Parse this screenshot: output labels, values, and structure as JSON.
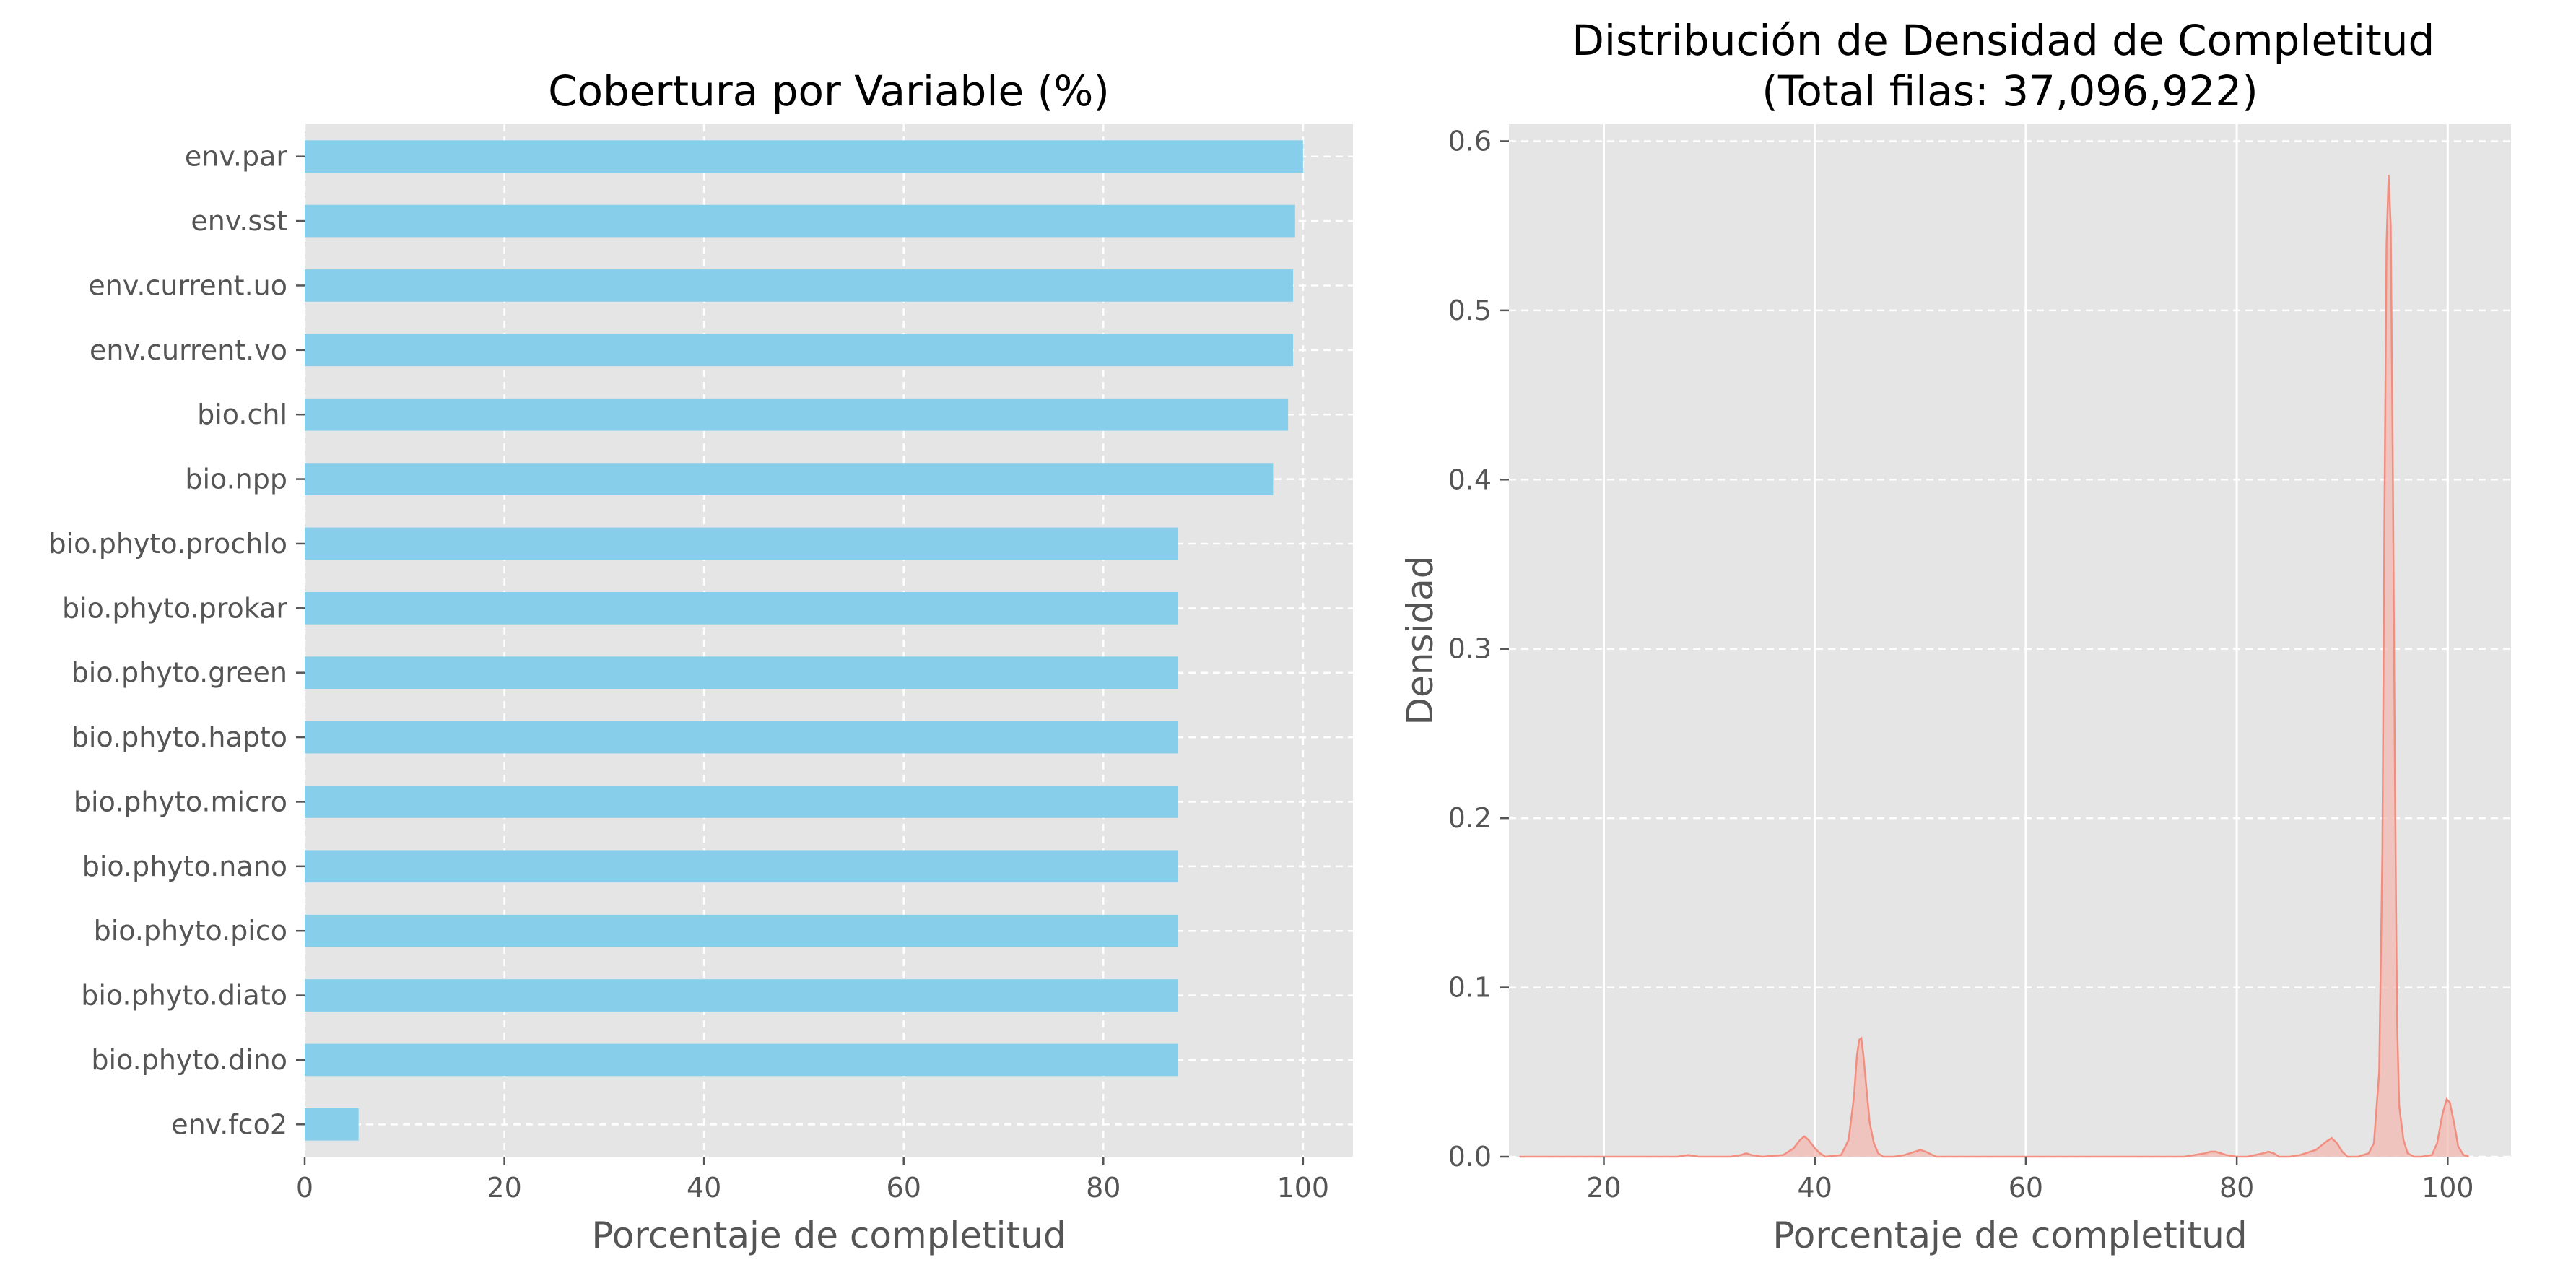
{
  "colors": {
    "background": "#ffffff",
    "plot_background": "#e5e5e5",
    "bar": "#87ceeb",
    "kde_line": "#f28e80",
    "kde_fill": "#f2b8b0",
    "grid": "#ffffff",
    "text": "#555555"
  },
  "chart_data": [
    {
      "type": "bar",
      "orientation": "horizontal",
      "title": "Cobertura por Variable (%)",
      "xlabel": "Porcentaje de completitud",
      "ylabel": "",
      "xlim": [
        0,
        105
      ],
      "xticks": [
        "0",
        "20",
        "40",
        "60",
        "80",
        "100"
      ],
      "grid": true,
      "categories": [
        "env.par",
        "env.sst",
        "env.current.uo",
        "env.current.vo",
        "bio.chl",
        "bio.npp",
        "bio.phyto.prochlo",
        "bio.phyto.prokar",
        "bio.phyto.green",
        "bio.phyto.hapto",
        "bio.phyto.micro",
        "bio.phyto.nano",
        "bio.phyto.pico",
        "bio.phyto.diato",
        "bio.phyto.dino",
        "env.fco2"
      ],
      "values": [
        100.0,
        99.2,
        99.0,
        99.0,
        98.5,
        97.0,
        87.5,
        87.5,
        87.5,
        87.5,
        87.5,
        87.5,
        87.5,
        87.5,
        87.5,
        5.4
      ]
    },
    {
      "type": "area",
      "kind": "kde",
      "title": "Distribución de Densidad de Completitud\n(Total filas: 37,096,922)",
      "xlabel": "Porcentaje de completitud",
      "ylabel": "Densidad",
      "xlim": [
        11,
        106
      ],
      "ylim": [
        0,
        0.61
      ],
      "xticks": [
        "20",
        "40",
        "60",
        "80",
        "100"
      ],
      "yticks": [
        "0.0",
        "0.1",
        "0.2",
        "0.3",
        "0.4",
        "0.5",
        "0.6"
      ],
      "grid": true,
      "x": [
        12.0,
        27.0,
        28.0,
        29.0,
        32.0,
        33.0,
        33.5,
        34.0,
        35.0,
        37.0,
        38.0,
        38.6,
        39.0,
        39.4,
        40.0,
        40.5,
        41.0,
        42.5,
        43.2,
        43.7,
        44.0,
        44.2,
        44.4,
        44.6,
        44.9,
        45.2,
        45.6,
        46.0,
        46.5,
        47.5,
        48.5,
        49.5,
        50.0,
        50.5,
        51.5,
        53.0,
        56.0,
        60.0,
        70.0,
        72.0,
        75.0,
        76.0,
        77.0,
        77.5,
        78.0,
        78.5,
        79.0,
        80.0,
        81.0,
        82.5,
        83.0,
        83.5,
        84.0,
        85.0,
        86.0,
        87.5,
        88.5,
        89.0,
        89.5,
        90.0,
        90.5,
        91.5,
        92.5,
        93.0,
        93.5,
        93.8,
        94.0,
        94.2,
        94.4,
        94.6,
        94.8,
        95.0,
        95.2,
        95.4,
        95.8,
        96.2,
        96.8,
        97.5,
        98.5,
        99.0,
        99.5,
        99.9,
        100.2,
        100.6,
        101.0,
        101.5,
        102.0
      ],
      "density": [
        0.0,
        0.0,
        0.001,
        0.0,
        0.0,
        0.001,
        0.002,
        0.001,
        0.0,
        0.001,
        0.005,
        0.01,
        0.012,
        0.01,
        0.005,
        0.002,
        0.0,
        0.001,
        0.01,
        0.035,
        0.06,
        0.069,
        0.07,
        0.06,
        0.04,
        0.02,
        0.008,
        0.002,
        0.0,
        0.0,
        0.001,
        0.003,
        0.004,
        0.003,
        0.0,
        0.0,
        0.0,
        0.0,
        0.0,
        0.0,
        0.0,
        0.001,
        0.002,
        0.003,
        0.003,
        0.002,
        0.001,
        0.0,
        0.0,
        0.002,
        0.003,
        0.002,
        0.0,
        0.0,
        0.001,
        0.004,
        0.009,
        0.011,
        0.008,
        0.003,
        0.0,
        0.0,
        0.002,
        0.008,
        0.05,
        0.18,
        0.38,
        0.54,
        0.58,
        0.55,
        0.4,
        0.22,
        0.08,
        0.03,
        0.01,
        0.002,
        0.0,
        0.0,
        0.001,
        0.008,
        0.025,
        0.034,
        0.032,
        0.02,
        0.006,
        0.001,
        0.0
      ]
    }
  ]
}
